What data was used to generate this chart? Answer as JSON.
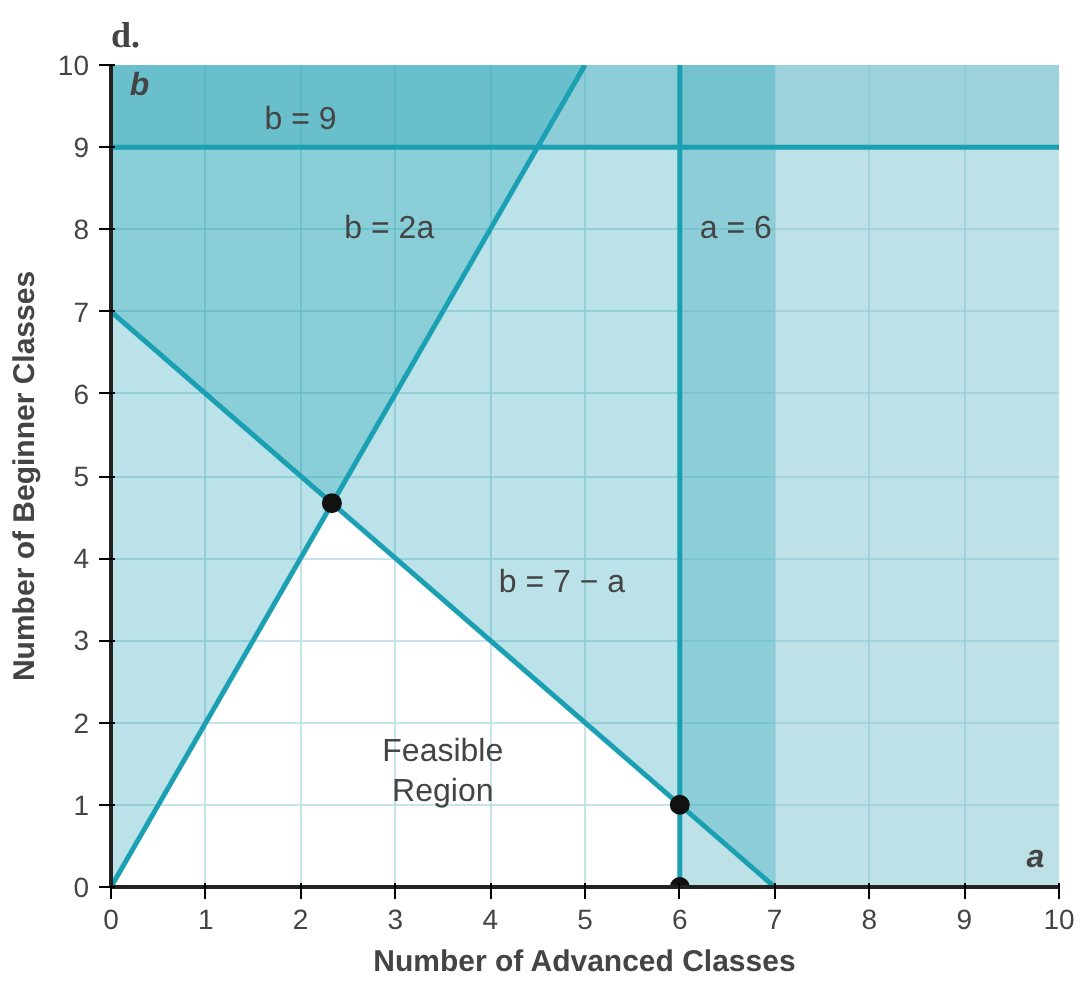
{
  "chart_data": {
    "type": "line",
    "title": "d.",
    "xlabel": "Number of Advanced Classes",
    "ylabel": "Number of Beginner Classes",
    "xlim": [
      0,
      10
    ],
    "ylim": [
      0,
      10
    ],
    "xticks": [
      0,
      1,
      2,
      3,
      4,
      5,
      6,
      7,
      8,
      9,
      10
    ],
    "yticks": [
      0,
      1,
      2,
      3,
      4,
      5,
      6,
      7,
      8,
      9,
      10
    ],
    "grid": true,
    "series": [
      {
        "name": "b = 2a",
        "color": "#1aa0b2",
        "x": [
          0,
          5
        ],
        "values": [
          0,
          10
        ],
        "lower": [
          0,
          10
        ],
        "upper": [
          10,
          10
        ]
      },
      {
        "name": "b = 7 − a",
        "color": "#1aa0b2",
        "x": [
          0,
          7
        ],
        "values": [
          7,
          0
        ],
        "lower": [
          7,
          0
        ],
        "upper": [
          10,
          10
        ]
      },
      {
        "name": "a = 6",
        "color": "#1aa0b2",
        "x": [
          6,
          6
        ],
        "values": [
          0,
          10
        ]
      },
      {
        "name": "b = 9",
        "color": "#1aa0b2",
        "x": [
          0,
          10
        ],
        "values": [
          9,
          9
        ]
      },
      {
        "type": "scatter",
        "color": "#111111",
        "x": [
          2.33,
          6,
          6
        ],
        "values": [
          4.67,
          1,
          0
        ]
      }
    ],
    "bands": [
      {
        "axis": "x",
        "from": 6,
        "to": 10,
        "color": "#7cc4d0"
      },
      {
        "axis": "y",
        "from": 9,
        "to": 10,
        "color": "#7cc4d0"
      }
    ],
    "annotations": [
      "Feasible\nRegion",
      "b",
      "a"
    ]
  }
}
